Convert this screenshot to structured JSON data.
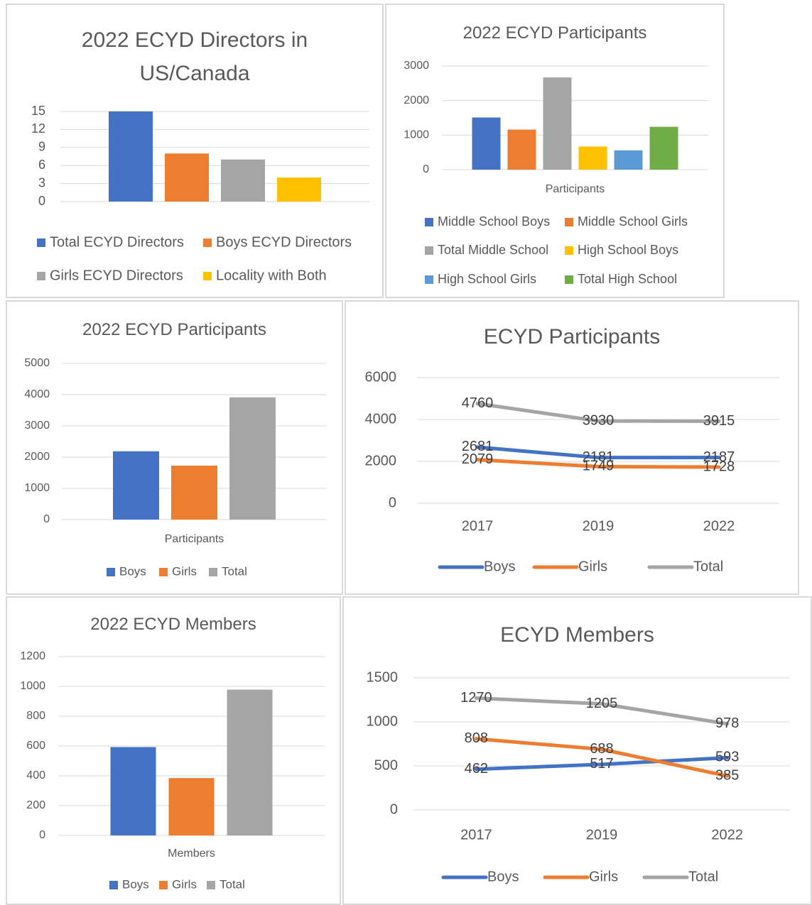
{
  "chart_data": [
    {
      "type": "bar",
      "title": "2022 ECYD Directors in US/Canada",
      "categories": [
        null
      ],
      "series": [
        {
          "name": "Total ECYD Directors",
          "color": "#4472c4",
          "values": [
            15
          ]
        },
        {
          "name": "Boys ECYD Directors",
          "color": "#ed7d31",
          "values": [
            8
          ]
        },
        {
          "name": "Girls ECYD Directors",
          "color": "#a5a5a5",
          "values": [
            7
          ]
        },
        {
          "name": "Locality with Both",
          "color": "#ffc000",
          "values": [
            4
          ]
        }
      ],
      "ylim": [
        0,
        15
      ],
      "yticks": [
        0,
        3,
        6,
        9,
        12,
        15
      ],
      "grid": true
    },
    {
      "type": "bar",
      "title": "2022 ECYD Participants",
      "categories": [
        "Participants"
      ],
      "series": [
        {
          "name": "Middle School Boys",
          "color": "#4472c4",
          "values": [
            1510
          ]
        },
        {
          "name": "Middle School Girls",
          "color": "#ed7d31",
          "values": [
            1160
          ]
        },
        {
          "name": "Total Middle School",
          "color": "#a5a5a5",
          "values": [
            2670
          ]
        },
        {
          "name": "High School Boys",
          "color": "#ffc000",
          "values": [
            670
          ]
        },
        {
          "name": "High School Girls",
          "color": "#5b9bd5",
          "values": [
            560
          ]
        },
        {
          "name": "Total High School",
          "color": "#70ad47",
          "values": [
            1240
          ]
        }
      ],
      "ylim": [
        0,
        3000
      ],
      "yticks": [
        0,
        1000,
        2000,
        3000
      ],
      "grid": true
    },
    {
      "type": "bar",
      "title": "2022 ECYD Participants",
      "categories": [
        "Participants"
      ],
      "series": [
        {
          "name": "Boys",
          "color": "#4472c4",
          "values": [
            2187
          ]
        },
        {
          "name": "Girls",
          "color": "#ed7d31",
          "values": [
            1728
          ]
        },
        {
          "name": "Total",
          "color": "#a5a5a5",
          "values": [
            3915
          ]
        }
      ],
      "ylim": [
        0,
        5000
      ],
      "yticks": [
        0,
        1000,
        2000,
        3000,
        4000,
        5000
      ],
      "grid": true
    },
    {
      "type": "line",
      "title": "ECYD Participants",
      "categories": [
        "2017",
        "2019",
        "2022"
      ],
      "series": [
        {
          "name": "Boys",
          "color": "#4472c4",
          "values": [
            2681,
            2181,
            2187
          ]
        },
        {
          "name": "Girls",
          "color": "#ed7d31",
          "values": [
            2079,
            1749,
            1728
          ]
        },
        {
          "name": "Total",
          "color": "#a5a5a5",
          "values": [
            4760,
            3930,
            3915
          ]
        }
      ],
      "ylim": [
        0,
        6000
      ],
      "yticks": [
        0,
        2000,
        4000,
        6000
      ],
      "grid": true,
      "data_labels": true
    },
    {
      "type": "bar",
      "title": "2022 ECYD Members",
      "categories": [
        "Members"
      ],
      "series": [
        {
          "name": "Boys",
          "color": "#4472c4",
          "values": [
            593
          ]
        },
        {
          "name": "Girls",
          "color": "#ed7d31",
          "values": [
            385
          ]
        },
        {
          "name": "Total",
          "color": "#a5a5a5",
          "values": [
            978
          ]
        }
      ],
      "ylim": [
        0,
        1200
      ],
      "yticks": [
        0,
        200,
        400,
        600,
        800,
        1000,
        1200
      ],
      "grid": true
    },
    {
      "type": "line",
      "title": "ECYD Members",
      "categories": [
        "2017",
        "2019",
        "2022"
      ],
      "series": [
        {
          "name": "Boys",
          "color": "#4472c4",
          "values": [
            462,
            517,
            593
          ]
        },
        {
          "name": "Girls",
          "color": "#ed7d31",
          "values": [
            808,
            688,
            385
          ]
        },
        {
          "name": "Total",
          "color": "#a5a5a5",
          "values": [
            1270,
            1205,
            978
          ]
        }
      ],
      "ylim": [
        0,
        1500
      ],
      "yticks": [
        0,
        500,
        1000,
        1500
      ],
      "grid": true,
      "data_labels": true
    }
  ]
}
